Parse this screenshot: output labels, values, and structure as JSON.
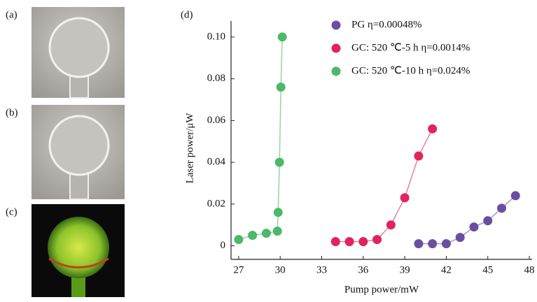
{
  "panels": [
    "(a)",
    "(b)",
    "(c)"
  ],
  "chart_data": {
    "type": "scatter",
    "panel_label": "(d)",
    "x_label": "Pump power/mW",
    "y_label": "Laser power/μW",
    "xlim": [
      26.45,
      48.2
    ],
    "xticks": [
      27,
      30,
      33,
      36,
      39,
      42,
      45,
      48
    ],
    "ylim": [
      -0.0065,
      0.105
    ],
    "yticks": [
      0,
      0.02,
      0.04,
      0.06,
      0.08,
      {
        "value": 0.1,
        "label": "0.10"
      }
    ],
    "series": [
      {
        "name": "PG η=0.00048%",
        "color": "#6a4fa0",
        "x": [
          40,
          41,
          42,
          43,
          44,
          45,
          46,
          47
        ],
        "values": [
          0.001,
          0.001,
          0.001,
          0.004,
          0.009,
          0.012,
          0.018,
          0.024
        ]
      },
      {
        "name": "GC: 520 ℃-5 h η=0.0014%",
        "color": "#e0245e",
        "x": [
          34,
          35,
          36,
          37,
          38,
          39,
          40,
          41
        ],
        "values": [
          0.002,
          0.002,
          0.002,
          0.003,
          0.01,
          0.023,
          0.043,
          0.056
        ]
      },
      {
        "name": "GC: 520 ℃-10 h η=0.024%",
        "color": "#4cb86a",
        "x": [
          27,
          28,
          29,
          29.8,
          29.85,
          29.95,
          30.05,
          30.15
        ],
        "values": [
          0.003,
          0.005,
          0.006,
          0.007,
          0.016,
          0.04,
          0.076,
          0.1
        ]
      }
    ]
  }
}
